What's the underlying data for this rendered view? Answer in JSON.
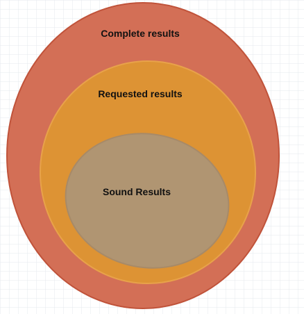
{
  "diagram": {
    "outer": {
      "label": "Complete results",
      "fill_color": "#d36f56",
      "stroke_color": "#c0533a"
    },
    "middle": {
      "label": "Requested results",
      "fill_color": "#dd9334",
      "stroke_color": "#e8a24a"
    },
    "inner": {
      "label": "Sound Results",
      "fill_color": "#b09572",
      "stroke_color": "#a78a68"
    }
  }
}
